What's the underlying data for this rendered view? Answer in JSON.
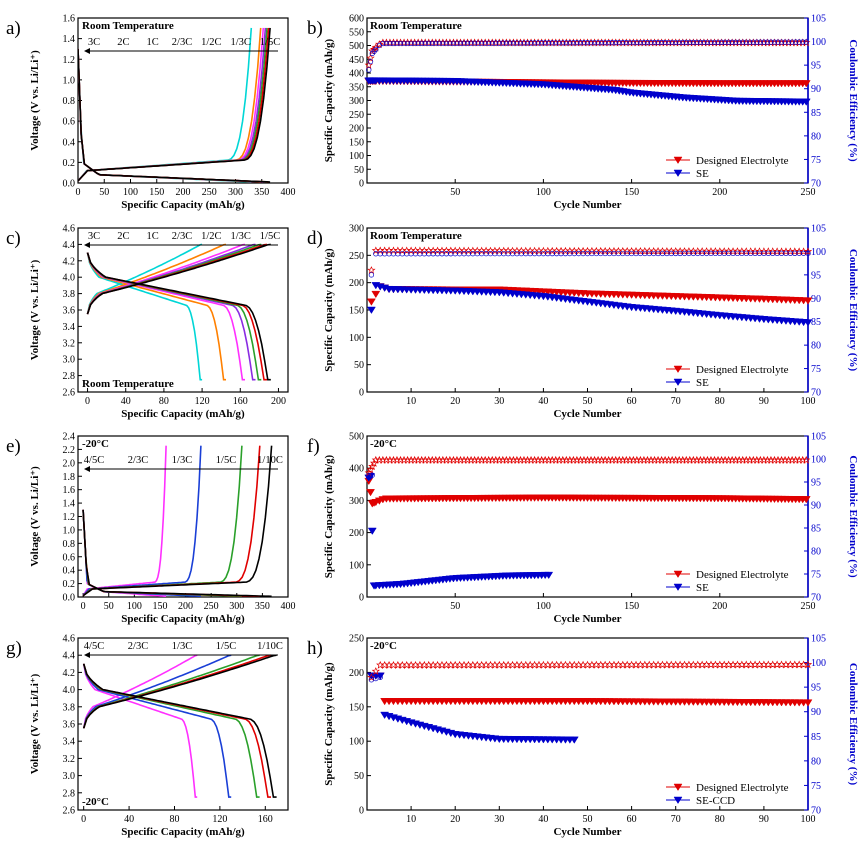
{
  "figure": "8-panel battery electrochemistry figure",
  "chart_data": [
    {
      "id": "a",
      "panel_label": "a)",
      "type": "line",
      "title": "Room Temperature",
      "title_position": "top-left",
      "xlabel": "Specific Capacity (mAh/g)",
      "xlim": [
        0,
        400
      ],
      "xticks": [
        0,
        50,
        100,
        150,
        200,
        250,
        300,
        350,
        400
      ],
      "ylabel": "Voltage (V vs. Li/Li⁺)",
      "ylim": [
        0,
        1.6
      ],
      "yticks": [
        0.0,
        0.2,
        0.4,
        0.6,
        0.8,
        1.0,
        1.2,
        1.4,
        1.6
      ],
      "rate_labels": [
        "3C",
        "2C",
        "1C",
        "2/3C",
        "1/2C",
        "1/3C",
        "1/5C"
      ],
      "rate_arrow": "left",
      "series": [
        {
          "name": "3C",
          "color": "#00d6d6",
          "cap": 330,
          "mode": "anode"
        },
        {
          "name": "2C",
          "color": "#ff8000",
          "cap": 348,
          "mode": "anode"
        },
        {
          "name": "1C",
          "color": "#ff30ff",
          "cap": 353,
          "mode": "anode"
        },
        {
          "name": "2/3C",
          "color": "#8a2be2",
          "cap": 357,
          "mode": "anode"
        },
        {
          "name": "1/2C",
          "color": "#2aa02a",
          "cap": 360,
          "mode": "anode"
        },
        {
          "name": "1/3C",
          "color": "#e00000",
          "cap": 363,
          "mode": "anode"
        },
        {
          "name": "1/5C",
          "color": "#000000",
          "cap": 366,
          "mode": "anode"
        }
      ]
    },
    {
      "id": "b",
      "panel_label": "b)",
      "type": "scatter",
      "title": "Room Temperature",
      "xlabel": "Cycle Number",
      "xlim": [
        0,
        250
      ],
      "xticks": [
        50,
        100,
        150,
        200,
        250
      ],
      "ylabel": "Specific Capacity (mAh/g)",
      "ylim": [
        0,
        600
      ],
      "yticks": [
        0,
        50,
        100,
        150,
        200,
        250,
        300,
        350,
        400,
        450,
        500,
        550,
        600
      ],
      "y2label": "Coulombic Efficiency (%)",
      "y2lim": [
        70,
        105
      ],
      "y2ticks": [
        70,
        75,
        80,
        85,
        90,
        95,
        100,
        105
      ],
      "legend": [
        {
          "label": "Designed Electrolyte",
          "color": "#e00000"
        },
        {
          "label": "SE",
          "color": "#0000cc"
        }
      ],
      "series": [
        {
          "name": "Designed Electrolyte capacity",
          "axis": "left",
          "color": "#e00000",
          "marker": "tri-down-filled",
          "points": [
            [
              1,
              370
            ],
            [
              10,
              370
            ],
            [
              50,
              368
            ],
            [
              100,
              365
            ],
            [
              150,
              363
            ],
            [
              200,
              362
            ],
            [
              250,
              362
            ]
          ]
        },
        {
          "name": "SE capacity",
          "axis": "left",
          "color": "#0000cc",
          "marker": "tri-down-filled",
          "points": [
            [
              1,
              372
            ],
            [
              10,
              372
            ],
            [
              50,
              370
            ],
            [
              100,
              358
            ],
            [
              140,
              338
            ],
            [
              150,
              328
            ],
            [
              180,
              310
            ],
            [
              210,
              298
            ],
            [
              250,
              295
            ]
          ]
        },
        {
          "name": "Designed Electrolyte CE",
          "axis": "right",
          "color": "#e00000",
          "marker": "star-open",
          "points": [
            [
              1,
              95
            ],
            [
              3,
              98
            ],
            [
              8,
              99.8
            ],
            [
              250,
              99.8
            ]
          ]
        },
        {
          "name": "SE CE",
          "axis": "right",
          "color": "#0000cc",
          "marker": "circle-open",
          "points": [
            [
              1,
              94
            ],
            [
              3,
              97.5
            ],
            [
              8,
              99.6
            ],
            [
              250,
              99.9
            ]
          ]
        }
      ]
    },
    {
      "id": "c",
      "panel_label": "c)",
      "type": "line",
      "title": "Room Temperature",
      "title_position": "bottom-left",
      "xlabel": "Specific Capacity (mAh/g)",
      "xlim": [
        -10,
        210
      ],
      "xticks": [
        0,
        40,
        80,
        120,
        160,
        200
      ],
      "ylabel": "Voltage (V vs. Li/Li⁺)",
      "ylim": [
        2.6,
        4.6
      ],
      "yticks": [
        2.6,
        2.8,
        3.0,
        3.2,
        3.4,
        3.6,
        3.8,
        4.0,
        4.2,
        4.4,
        4.6
      ],
      "rate_labels": [
        "3C",
        "2C",
        "1C",
        "2/3C",
        "1/2C",
        "1/3C",
        "1/5C"
      ],
      "rate_arrow": "left",
      "series": [
        {
          "name": "3C",
          "color": "#00d6d6",
          "cap": 120,
          "mode": "cathode"
        },
        {
          "name": "2C",
          "color": "#ff8000",
          "cap": 145,
          "mode": "cathode"
        },
        {
          "name": "1C",
          "color": "#ff30ff",
          "cap": 165,
          "mode": "cathode"
        },
        {
          "name": "2/3C",
          "color": "#8a2be2",
          "cap": 176,
          "mode": "cathode"
        },
        {
          "name": "1/2C",
          "color": "#2aa02a",
          "cap": 182,
          "mode": "cathode"
        },
        {
          "name": "1/3C",
          "color": "#e00000",
          "cap": 188,
          "mode": "cathode"
        },
        {
          "name": "1/5C",
          "color": "#000000",
          "cap": 192,
          "mode": "cathode"
        }
      ]
    },
    {
      "id": "d",
      "panel_label": "d)",
      "type": "scatter",
      "title": "Room Temperature",
      "xlabel": "Cycle Number",
      "xlim": [
        0,
        100
      ],
      "xticks": [
        10,
        20,
        30,
        40,
        50,
        60,
        70,
        80,
        90,
        100
      ],
      "ylabel": "Specific Capacity (mAh/g)",
      "ylim": [
        0,
        300
      ],
      "yticks": [
        0,
        50,
        100,
        150,
        200,
        250,
        300
      ],
      "y2label": "Coulombic Efficiency (%)",
      "y2lim": [
        70,
        105
      ],
      "y2ticks": [
        70,
        75,
        80,
        85,
        90,
        95,
        100,
        105
      ],
      "legend": [
        {
          "label": "Designed Electrolyte",
          "color": "#e00000"
        },
        {
          "label": "SE",
          "color": "#0000cc"
        }
      ],
      "series": [
        {
          "name": "Designed Electrolyte capacity",
          "axis": "left",
          "color": "#e00000",
          "marker": "tri-down-filled",
          "points": [
            [
              1,
              165
            ],
            [
              3,
              193
            ],
            [
              5,
              188
            ],
            [
              20,
              187
            ],
            [
              30,
              187
            ],
            [
              50,
              180
            ],
            [
              70,
              175
            ],
            [
              90,
              170
            ],
            [
              100,
              167
            ]
          ]
        },
        {
          "name": "SE capacity",
          "axis": "left",
          "color": "#0000cc",
          "marker": "tri-down-filled",
          "points": [
            [
              1,
              150
            ],
            [
              2,
              195
            ],
            [
              5,
              188
            ],
            [
              20,
              185
            ],
            [
              30,
              182
            ],
            [
              40,
              175
            ],
            [
              50,
              165
            ],
            [
              60,
              155
            ],
            [
              70,
              148
            ],
            [
              80,
              140
            ],
            [
              90,
              133
            ],
            [
              100,
              127
            ]
          ]
        },
        {
          "name": "Designed Electrolyte CE",
          "axis": "right",
          "color": "#e00000",
          "marker": "star-open",
          "points": [
            [
              1,
              96
            ],
            [
              2,
              100.2
            ],
            [
              100,
              100
            ]
          ]
        },
        {
          "name": "SE CE",
          "axis": "right",
          "color": "#0000cc",
          "marker": "circle-open",
          "points": [
            [
              1,
              95
            ],
            [
              2,
              99.5
            ],
            [
              100,
              99.6
            ]
          ]
        }
      ]
    },
    {
      "id": "e",
      "panel_label": "e)",
      "type": "line",
      "title": "-20°C",
      "title_position": "top-left",
      "xlabel": "Specific Capacity (mAh/g)",
      "xlim": [
        -10,
        400
      ],
      "xticks": [
        0,
        50,
        100,
        150,
        200,
        250,
        300,
        350,
        400
      ],
      "ylabel": "Voltage (V vs. Li/Li⁺)",
      "ylim": [
        0,
        2.4
      ],
      "yticks": [
        0.0,
        0.2,
        0.4,
        0.6,
        0.8,
        1.0,
        1.2,
        1.4,
        1.6,
        1.8,
        2.0,
        2.2,
        2.4
      ],
      "rate_labels": [
        "4/5C",
        "2/3C",
        "1/3C",
        "1/5C",
        "1/10C"
      ],
      "rate_arrow": "left",
      "series": [
        {
          "name": "4/5C",
          "color": "#ff30ff",
          "cap": 162,
          "mode": "anode"
        },
        {
          "name": "1/3C",
          "color": "#1a3fd6",
          "cap": 230,
          "mode": "anode"
        },
        {
          "name": "1/5C",
          "color": "#2aa02a",
          "cap": 310,
          "mode": "anode"
        },
        {
          "name": "2/3C",
          "color": "#e00000",
          "cap": 345,
          "mode": "anode"
        },
        {
          "name": "1/10C",
          "color": "#000000",
          "cap": 368,
          "mode": "anode"
        }
      ]
    },
    {
      "id": "f",
      "panel_label": "f)",
      "type": "scatter",
      "title": "-20°C",
      "xlabel": "Cycle Number",
      "xlim": [
        0,
        250
      ],
      "xticks": [
        50,
        100,
        150,
        200,
        250
      ],
      "ylabel": "Specific Capacity (mAh/g)",
      "ylim": [
        0,
        500
      ],
      "yticks": [
        0,
        100,
        200,
        300,
        400,
        500
      ],
      "y2label": "Coulombic Efficiency (%)",
      "y2lim": [
        70,
        105
      ],
      "y2ticks": [
        70,
        75,
        80,
        85,
        90,
        95,
        100,
        105
      ],
      "legend": [
        {
          "label": "Designed Electrolyte",
          "color": "#e00000"
        },
        {
          "label": "SE",
          "color": "#0000cc"
        }
      ],
      "series": [
        {
          "name": "Designed Electrolyte capacity",
          "axis": "left",
          "color": "#e00000",
          "marker": "tri-down-filled",
          "points": [
            [
              1,
              360
            ],
            [
              3,
              290
            ],
            [
              10,
              305
            ],
            [
              100,
              308
            ],
            [
              200,
              306
            ],
            [
              250,
              303
            ]
          ]
        },
        {
          "name": "SE capacity",
          "axis": "left",
          "color": "#0000cc",
          "marker": "tri-down-filled",
          "points": [
            [
              1,
              370
            ],
            [
              2,
              375
            ],
            [
              4,
              35
            ],
            [
              20,
              40
            ],
            [
              50,
              58
            ],
            [
              80,
              66
            ],
            [
              103,
              68
            ]
          ]
        },
        {
          "name": "Designed Electrolyte CE",
          "axis": "right",
          "color": "#e00000",
          "marker": "star-open",
          "points": [
            [
              1,
              97
            ],
            [
              5,
              99.8
            ],
            [
              250,
              99.8
            ]
          ]
        },
        {
          "name": "SE CE",
          "axis": "right",
          "color": "#0000cc",
          "marker": "circle-open",
          "points": [
            [
              1,
              96
            ],
            [
              3,
              96.5
            ]
          ]
        }
      ]
    },
    {
      "id": "g",
      "panel_label": "g)",
      "type": "line",
      "title": "-20°C",
      "title_position": "bottom-left",
      "xlabel": "Specific Capacity (mAh/g)",
      "xlim": [
        -5,
        180
      ],
      "xticks": [
        0,
        40,
        80,
        120,
        160
      ],
      "ylabel": "Voltage (V vs. Li/Li⁺)",
      "ylim": [
        2.6,
        4.6
      ],
      "yticks": [
        2.6,
        2.8,
        3.0,
        3.2,
        3.4,
        3.6,
        3.8,
        4.0,
        4.2,
        4.4,
        4.6
      ],
      "rate_labels": [
        "4/5C",
        "2/3C",
        "1/3C",
        "1/5C",
        "1/10C"
      ],
      "rate_arrow": "left",
      "series": [
        {
          "name": "4/5C",
          "color": "#ff30ff",
          "cap": 100,
          "mode": "cathode"
        },
        {
          "name": "1/3C",
          "color": "#1a3fd6",
          "cap": 130,
          "mode": "cathode"
        },
        {
          "name": "1/5C",
          "color": "#2aa02a",
          "cap": 155,
          "mode": "cathode"
        },
        {
          "name": "2/3C",
          "color": "#e00000",
          "cap": 165,
          "mode": "cathode"
        },
        {
          "name": "1/10C",
          "color": "#000000",
          "cap": 170,
          "mode": "cathode"
        }
      ]
    },
    {
      "id": "h",
      "panel_label": "h)",
      "type": "scatter",
      "title": "-20°C",
      "xlabel": "Cycle Number",
      "xlim": [
        0,
        100
      ],
      "xticks": [
        10,
        20,
        30,
        40,
        50,
        60,
        70,
        80,
        90,
        100
      ],
      "ylabel": "Specific Capacity (mAh/g)",
      "ylim": [
        0,
        250
      ],
      "yticks": [
        0,
        50,
        100,
        150,
        200,
        250
      ],
      "y2label": "Coulombic Efficiency (%)",
      "y2lim": [
        70,
        105
      ],
      "y2ticks": [
        70,
        75,
        80,
        85,
        90,
        95,
        100,
        105
      ],
      "legend": [
        {
          "label": "Designed Electrolyte",
          "color": "#e00000"
        },
        {
          "label": "SE-CCD",
          "color": "#0000cc"
        }
      ],
      "series": [
        {
          "name": "Designed Electrolyte capacity",
          "axis": "left",
          "color": "#e00000",
          "marker": "tri-down-filled",
          "points": [
            [
              1,
              195
            ],
            [
              3,
              195
            ],
            [
              4,
              158
            ],
            [
              50,
              158
            ],
            [
              100,
              156
            ]
          ]
        },
        {
          "name": "SE-CCD capacity",
          "axis": "left",
          "color": "#0000cc",
          "marker": "tri-down-filled",
          "points": [
            [
              1,
              195
            ],
            [
              3,
              195
            ],
            [
              4,
              138
            ],
            [
              10,
              127
            ],
            [
              20,
              110
            ],
            [
              30,
              103
            ],
            [
              47,
              102
            ]
          ]
        },
        {
          "name": "Designed Electrolyte CE",
          "axis": "right",
          "color": "#e00000",
          "marker": "star-open",
          "points": [
            [
              1,
              97
            ],
            [
              3,
              99.5
            ],
            [
              100,
              99.6
            ]
          ]
        },
        {
          "name": "SE-CCD CE",
          "axis": "right",
          "color": "#0000cc",
          "marker": "circle-open",
          "points": [
            [
              1,
              96.5
            ],
            [
              3,
              97
            ]
          ]
        }
      ]
    }
  ]
}
